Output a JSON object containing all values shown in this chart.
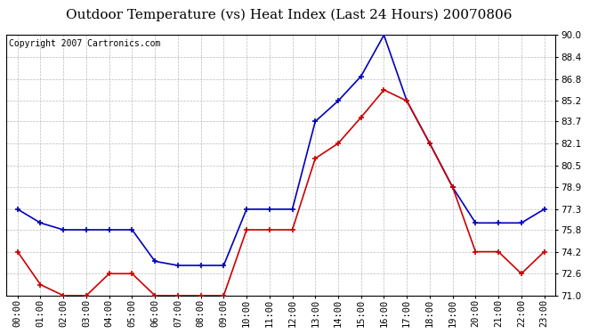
{
  "title": "Outdoor Temperature (vs) Heat Index (Last 24 Hours) 20070806",
  "copyright_text": "Copyright 2007 Cartronics.com",
  "x_labels": [
    "00:00",
    "01:00",
    "02:00",
    "03:00",
    "04:00",
    "05:00",
    "06:00",
    "07:00",
    "08:00",
    "09:00",
    "10:00",
    "11:00",
    "12:00",
    "13:00",
    "14:00",
    "15:00",
    "16:00",
    "17:00",
    "18:00",
    "19:00",
    "20:00",
    "21:00",
    "22:00",
    "23:00"
  ],
  "blue_data": [
    77.3,
    76.3,
    75.8,
    75.8,
    75.8,
    75.8,
    73.5,
    73.2,
    73.2,
    73.2,
    77.3,
    77.3,
    77.3,
    83.7,
    85.2,
    87.0,
    90.0,
    85.2,
    82.1,
    78.9,
    76.3,
    76.3,
    76.3,
    77.3
  ],
  "red_data": [
    74.2,
    71.8,
    71.0,
    71.0,
    72.6,
    72.6,
    71.0,
    71.0,
    71.0,
    71.0,
    75.8,
    75.8,
    75.8,
    81.0,
    82.1,
    84.0,
    86.0,
    85.2,
    82.1,
    78.9,
    74.2,
    74.2,
    72.6,
    74.2
  ],
  "ylim": [
    71.0,
    90.0
  ],
  "yticks": [
    71.0,
    72.6,
    74.2,
    75.8,
    77.3,
    78.9,
    80.5,
    82.1,
    83.7,
    85.2,
    86.8,
    88.4,
    90.0
  ],
  "blue_color": "#0000bb",
  "red_color": "#cc0000",
  "bg_color": "#ffffff",
  "grid_color": "#bbbbbb",
  "title_fontsize": 11,
  "copyright_fontsize": 7,
  "tick_fontsize": 7.5
}
